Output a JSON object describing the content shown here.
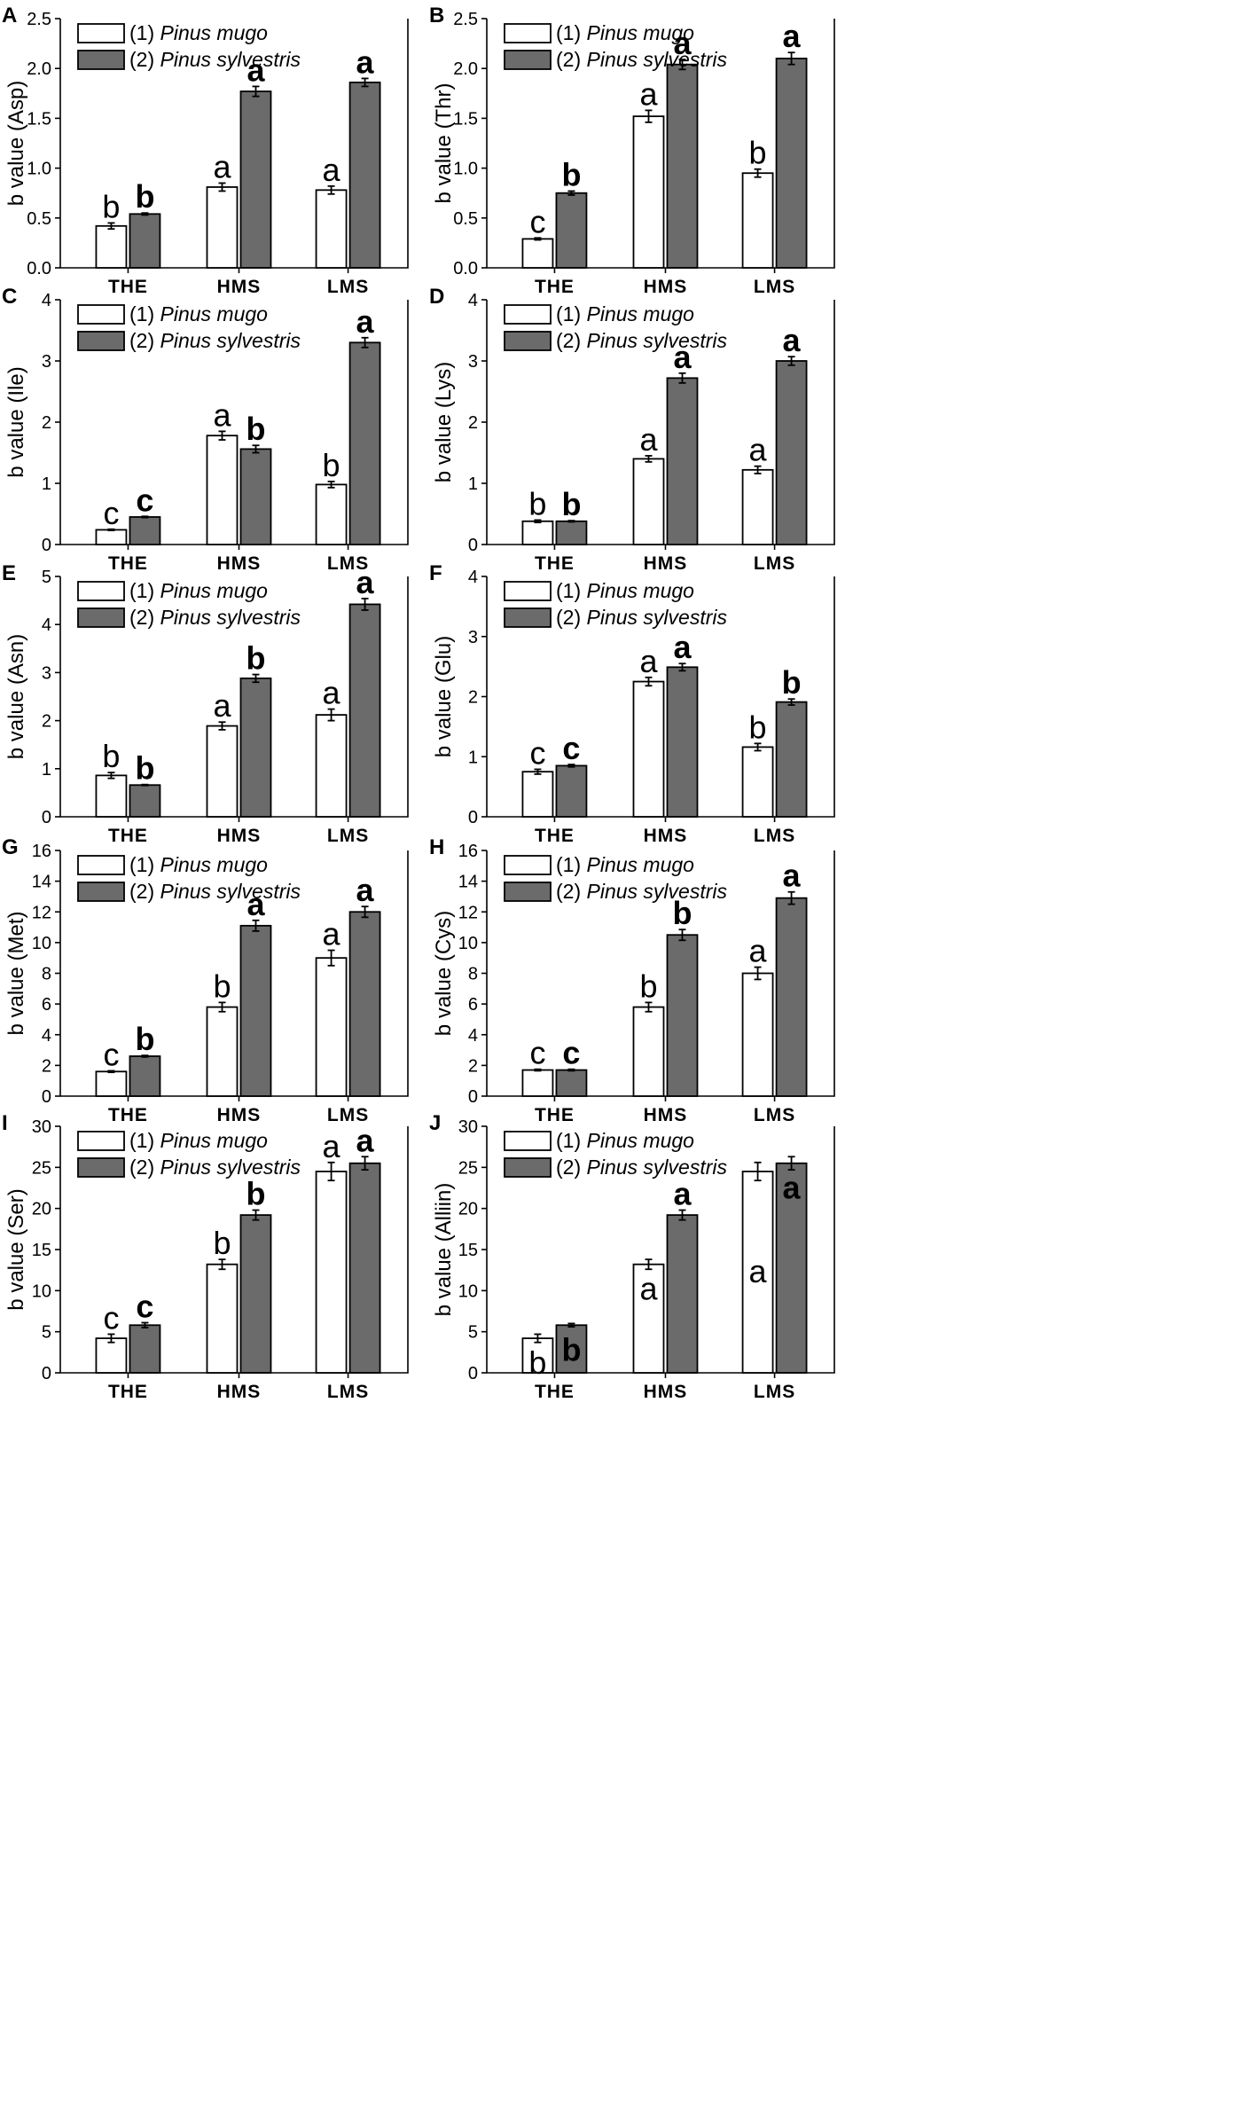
{
  "legend": {
    "items": [
      {
        "prefix": "(1) ",
        "name": "Pinus mugo"
      },
      {
        "prefix": "(2) ",
        "name": "Pinus sylvestris"
      }
    ],
    "position": "top-left"
  },
  "colors": {
    "mugo": "#ffffff",
    "sylvestris": "#6b6b6b"
  },
  "chart_data": [
    {
      "panel": "A",
      "type": "bar",
      "ylabel": "b value (Asp)",
      "ylim": [
        0,
        2.5
      ],
      "yticks": [
        "0.0",
        "0.5",
        "1.0",
        "1.5",
        "2.0",
        "2.5"
      ],
      "categories": [
        "THE",
        "HMS",
        "LMS"
      ],
      "series": [
        {
          "name": "(1) Pinus mugo",
          "values": [
            0.42,
            0.81,
            0.78
          ],
          "errors": [
            0.03,
            0.04,
            0.04
          ],
          "labels": [
            "b",
            "a",
            "a"
          ],
          "label_pos": [
            "above",
            "above",
            "above"
          ]
        },
        {
          "name": "(2) Pinus sylvestris",
          "values": [
            0.54,
            1.77,
            1.86
          ],
          "errors": [
            0.01,
            0.05,
            0.04
          ],
          "labels": [
            "b",
            "a",
            "a"
          ],
          "label_pos": [
            "above",
            "above",
            "above"
          ]
        }
      ]
    },
    {
      "panel": "B",
      "type": "bar",
      "ylabel": "b value (Thr)",
      "ylim": [
        0,
        2.5
      ],
      "yticks": [
        "0.0",
        "0.5",
        "1.0",
        "1.5",
        "2.0",
        "2.5"
      ],
      "categories": [
        "THE",
        "HMS",
        "LMS"
      ],
      "series": [
        {
          "name": "(1) Pinus mugo",
          "values": [
            0.29,
            1.52,
            0.95
          ],
          "errors": [
            0.01,
            0.06,
            0.04
          ],
          "labels": [
            "c",
            "a",
            "b"
          ],
          "label_pos": [
            "above",
            "above",
            "above"
          ]
        },
        {
          "name": "(2) Pinus sylvestris",
          "values": [
            0.75,
            2.04,
            2.1
          ],
          "errors": [
            0.02,
            0.05,
            0.06
          ],
          "labels": [
            "b",
            "a",
            "a"
          ],
          "label_pos": [
            "above",
            "above",
            "above"
          ]
        }
      ]
    },
    {
      "panel": "C",
      "type": "bar",
      "ylabel": "b value (Ile)",
      "ylim": [
        0,
        4
      ],
      "yticks": [
        "0",
        "1",
        "2",
        "3",
        "4"
      ],
      "categories": [
        "THE",
        "HMS",
        "LMS"
      ],
      "series": [
        {
          "name": "(1) Pinus mugo",
          "values": [
            0.24,
            1.78,
            0.98
          ],
          "errors": [
            0.01,
            0.07,
            0.05
          ],
          "labels": [
            "c",
            "a",
            "b"
          ],
          "label_pos": [
            "above",
            "above",
            "above"
          ]
        },
        {
          "name": "(2) Pinus sylvestris",
          "values": [
            0.45,
            1.56,
            3.3
          ],
          "errors": [
            0.01,
            0.06,
            0.08
          ],
          "labels": [
            "c",
            "b",
            "a"
          ],
          "label_pos": [
            "above",
            "above",
            "above"
          ]
        }
      ]
    },
    {
      "panel": "D",
      "type": "bar",
      "ylabel": "b value (Lys)",
      "ylim": [
        0,
        4
      ],
      "yticks": [
        "0",
        "1",
        "2",
        "3",
        "4"
      ],
      "categories": [
        "THE",
        "HMS",
        "LMS"
      ],
      "series": [
        {
          "name": "(1) Pinus mugo",
          "values": [
            0.38,
            1.4,
            1.22
          ],
          "errors": [
            0.02,
            0.05,
            0.06
          ],
          "labels": [
            "b",
            "a",
            "a"
          ],
          "label_pos": [
            "above",
            "above",
            "above"
          ]
        },
        {
          "name": "(2) Pinus sylvestris",
          "values": [
            0.38,
            2.72,
            3.0
          ],
          "errors": [
            0.01,
            0.08,
            0.07
          ],
          "labels": [
            "b",
            "a",
            "a"
          ],
          "label_pos": [
            "above",
            "above",
            "above"
          ]
        }
      ]
    },
    {
      "panel": "E",
      "type": "bar",
      "ylabel": "b value (Asn)",
      "ylim": [
        0,
        5
      ],
      "yticks": [
        "0",
        "1",
        "2",
        "3",
        "4",
        "5"
      ],
      "categories": [
        "THE",
        "HMS",
        "LMS"
      ],
      "series": [
        {
          "name": "(1) Pinus mugo",
          "values": [
            0.86,
            1.89,
            2.12
          ],
          "errors": [
            0.06,
            0.08,
            0.12
          ],
          "labels": [
            "b",
            "a",
            "a"
          ],
          "label_pos": [
            "above",
            "above",
            "above"
          ]
        },
        {
          "name": "(2) Pinus sylvestris",
          "values": [
            0.66,
            2.88,
            4.42
          ],
          "errors": [
            0.01,
            0.08,
            0.12
          ],
          "labels": [
            "b",
            "b",
            "a"
          ],
          "label_pos": [
            "above",
            "above",
            "above"
          ]
        }
      ]
    },
    {
      "panel": "F",
      "type": "bar",
      "ylabel": "b value (Glu)",
      "ylim": [
        0,
        4
      ],
      "yticks": [
        "0",
        "1",
        "2",
        "3",
        "4"
      ],
      "categories": [
        "THE",
        "HMS",
        "LMS"
      ],
      "series": [
        {
          "name": "(1) Pinus mugo",
          "values": [
            0.75,
            2.25,
            1.16
          ],
          "errors": [
            0.04,
            0.07,
            0.06
          ],
          "labels": [
            "c",
            "a",
            "b"
          ],
          "label_pos": [
            "above",
            "above",
            "above"
          ]
        },
        {
          "name": "(2) Pinus sylvestris",
          "values": [
            0.85,
            2.49,
            1.91
          ],
          "errors": [
            0.02,
            0.06,
            0.05
          ],
          "labels": [
            "c",
            "a",
            "b"
          ],
          "label_pos": [
            "above",
            "above",
            "above"
          ]
        }
      ]
    },
    {
      "panel": "G",
      "type": "bar",
      "ylabel": "b value (Met)",
      "ylim": [
        0,
        16
      ],
      "yticks": [
        "0",
        "2",
        "4",
        "6",
        "8",
        "10",
        "12",
        "14",
        "16"
      ],
      "categories": [
        "THE",
        "HMS",
        "LMS"
      ],
      "series": [
        {
          "name": "(1) Pinus mugo",
          "values": [
            1.6,
            5.8,
            9.0
          ],
          "errors": [
            0.05,
            0.3,
            0.5
          ],
          "labels": [
            "c",
            "b",
            "a"
          ],
          "label_pos": [
            "above",
            "above",
            "above"
          ]
        },
        {
          "name": "(2) Pinus sylvestris",
          "values": [
            2.6,
            11.1,
            12.0
          ],
          "errors": [
            0.05,
            0.35,
            0.35
          ],
          "labels": [
            "b",
            "a",
            "a"
          ],
          "label_pos": [
            "above",
            "above",
            "above"
          ]
        }
      ]
    },
    {
      "panel": "H",
      "type": "bar",
      "ylabel": "b value (Cys)",
      "ylim": [
        0,
        16
      ],
      "yticks": [
        "0",
        "2",
        "4",
        "6",
        "8",
        "10",
        "12",
        "14",
        "16"
      ],
      "categories": [
        "THE",
        "HMS",
        "LMS"
      ],
      "series": [
        {
          "name": "(1) Pinus mugo",
          "values": [
            1.7,
            5.8,
            8.0
          ],
          "errors": [
            0.05,
            0.3,
            0.4
          ],
          "labels": [
            "c",
            "b",
            "a"
          ],
          "label_pos": [
            "above",
            "above",
            "above"
          ]
        },
        {
          "name": "(2) Pinus sylvestris",
          "values": [
            1.7,
            10.5,
            12.9
          ],
          "errors": [
            0.05,
            0.35,
            0.4
          ],
          "labels": [
            "c",
            "b",
            "a"
          ],
          "label_pos": [
            "above",
            "above",
            "above"
          ]
        }
      ]
    },
    {
      "panel": "I",
      "type": "bar",
      "ylabel": "b value (Ser)",
      "ylim": [
        0,
        30
      ],
      "yticks": [
        "0",
        "5",
        "10",
        "15",
        "20",
        "25",
        "30"
      ],
      "categories": [
        "THE",
        "HMS",
        "LMS"
      ],
      "series": [
        {
          "name": "(1) Pinus mugo",
          "values": [
            4.2,
            13.2,
            24.5
          ],
          "errors": [
            0.5,
            0.6,
            1.1
          ],
          "labels": [
            "c",
            "b",
            "a"
          ],
          "label_pos": [
            "above",
            "above",
            "above"
          ]
        },
        {
          "name": "(2) Pinus sylvestris",
          "values": [
            5.8,
            19.2,
            25.5
          ],
          "errors": [
            0.3,
            0.6,
            0.8
          ],
          "labels": [
            "c",
            "b",
            "a"
          ],
          "label_pos": [
            "above",
            "above",
            "above"
          ]
        }
      ]
    },
    {
      "panel": "J",
      "type": "bar",
      "ylabel": "b value (Alliin)",
      "ylim": [
        0,
        30
      ],
      "yticks": [
        "0",
        "5",
        "10",
        "15",
        "20",
        "25",
        "30"
      ],
      "categories": [
        "THE",
        "HMS",
        "LMS"
      ],
      "series": [
        {
          "name": "(1) Pinus mugo",
          "values": [
            4.2,
            13.2,
            24.5
          ],
          "errors": [
            0.5,
            0.6,
            1.1
          ],
          "labels": [
            "b",
            "a",
            "a"
          ],
          "label_pos": [
            "inside_top",
            "inside_top",
            "inside_mid"
          ]
        },
        {
          "name": "(2) Pinus sylvestris",
          "values": [
            5.8,
            19.2,
            25.5
          ],
          "errors": [
            0.2,
            0.6,
            0.8
          ],
          "labels": [
            "b",
            "a",
            "a"
          ],
          "label_pos": [
            "inside_top",
            "above",
            "inside_top"
          ]
        }
      ]
    }
  ]
}
